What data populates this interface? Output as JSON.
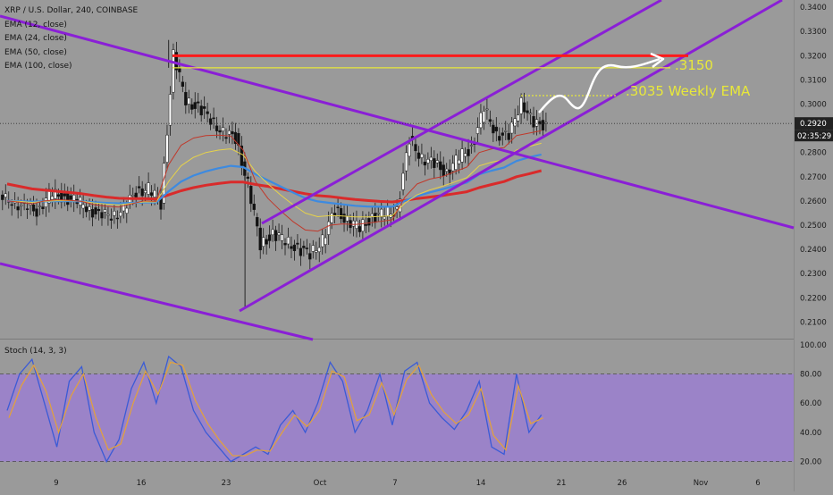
{
  "header": {
    "title": "XRP / U.S. Dollar, 240, COINBASE",
    "indicators": [
      "EMA (12, close)",
      "EMA (24, close)",
      "EMA (50, close)",
      "EMA (100, close)"
    ]
  },
  "stoch_panel": {
    "label": "Stoch (14, 3, 3)"
  },
  "price_box": {
    "price": "0.2920",
    "countdown": "02:35:29"
  },
  "annotations": {
    "target": ".3150",
    "weekly_ema": ".3035 Weekly EMA"
  },
  "colors": {
    "background": "#9a9a9a",
    "channel": "#8a1fd6",
    "resistance": "#ff1a1a",
    "annotation_line": "#e8e83a",
    "annotation_text": "#e8e83a",
    "ema12": "#c0392b",
    "ema24": "#e6d24a",
    "ema50": "#3d8ae0",
    "ema100": "#d92b2b",
    "candle_up": "#ffffff",
    "candle_down": "#111111",
    "stoch_band": "#9b7fd0",
    "stoch_k": "#3b5bd6",
    "stoch_d": "#e0a040"
  },
  "chart_data": [
    {
      "type": "candlestick",
      "title": "XRP / U.S. Dollar, 240, COINBASE",
      "y_axis_ticks": [
        "0.3400",
        "0.3300",
        "0.3200",
        "0.3100",
        "0.3000",
        "0.2900",
        "0.2800",
        "0.2700",
        "0.2600",
        "0.2500",
        "0.2400",
        "0.2300",
        "0.2200",
        "0.2100"
      ],
      "ylim": [
        0.2035,
        0.343
      ],
      "x_axis_ticks": [
        "9",
        "16",
        "23",
        "Oct",
        "7",
        "14",
        "21",
        "26",
        "Nov",
        "6"
      ],
      "x": [
        "Sep 05",
        "Sep 06",
        "Sep 07",
        "Sep 08",
        "Sep 09",
        "Sep 10",
        "Sep 11",
        "Sep 12",
        "Sep 13",
        "Sep 14",
        "Sep 15",
        "Sep 16",
        "Sep 17",
        "Sep 18",
        "Sep 19",
        "Sep 20",
        "Sep 21",
        "Sep 22",
        "Sep 23",
        "Sep 24",
        "Sep 25",
        "Sep 26",
        "Sep 27",
        "Sep 28",
        "Sep 29",
        "Sep 30",
        "Oct 01",
        "Oct 02",
        "Oct 03",
        "Oct 04",
        "Oct 05",
        "Oct 06",
        "Oct 07",
        "Oct 08",
        "Oct 09",
        "Oct 10",
        "Oct 11",
        "Oct 12",
        "Oct 13",
        "Oct 14",
        "Oct 15",
        "Oct 16",
        "Oct 17",
        "Oct 18"
      ],
      "close": [
        0.2605,
        0.257,
        0.256,
        0.2625,
        0.262,
        0.26,
        0.258,
        0.2535,
        0.2545,
        0.256,
        0.264,
        0.265,
        0.259,
        0.32,
        0.302,
        0.298,
        0.294,
        0.288,
        0.286,
        0.267,
        0.242,
        0.246,
        0.244,
        0.24,
        0.238,
        0.244,
        0.256,
        0.252,
        0.249,
        0.253,
        0.255,
        0.256,
        0.285,
        0.278,
        0.275,
        0.272,
        0.278,
        0.282,
        0.298,
        0.288,
        0.286,
        0.302,
        0.291,
        0.292
      ],
      "current_price": 0.292,
      "horizontal_lines": [
        {
          "price": 0.32,
          "role": "resistance"
        },
        {
          "price": 0.315,
          "label": ".3150"
        },
        {
          "price": 0.3035,
          "label": ".3035 Weekly EMA"
        }
      ],
      "series": [
        {
          "name": "EMA (12, close)",
          "values": [
            0.26,
            0.2595,
            0.2588,
            0.26,
            0.2605,
            0.2603,
            0.2598,
            0.2585,
            0.2578,
            0.2575,
            0.2588,
            0.26,
            0.2598,
            0.275,
            0.283,
            0.286,
            0.287,
            0.2872,
            0.2868,
            0.281,
            0.268,
            0.261,
            0.256,
            0.2515,
            0.248,
            0.2475,
            0.25,
            0.2505,
            0.2503,
            0.2508,
            0.2515,
            0.2522,
            0.2615,
            0.267,
            0.269,
            0.27,
            0.272,
            0.274,
            0.28,
            0.2815,
            0.282,
            0.287,
            0.288,
            0.289
          ]
        },
        {
          "name": "EMA (24, close)",
          "values": [
            0.26,
            0.2598,
            0.2594,
            0.2598,
            0.2601,
            0.2601,
            0.2599,
            0.2592,
            0.2587,
            0.2584,
            0.259,
            0.2596,
            0.2596,
            0.268,
            0.2745,
            0.278,
            0.28,
            0.281,
            0.2815,
            0.279,
            0.272,
            0.267,
            0.2625,
            0.2585,
            0.255,
            0.2535,
            0.254,
            0.2538,
            0.2534,
            0.2534,
            0.2536,
            0.2539,
            0.259,
            0.2625,
            0.2645,
            0.266,
            0.2678,
            0.2696,
            0.2745,
            0.276,
            0.277,
            0.281,
            0.2825,
            0.2838
          ]
        },
        {
          "name": "EMA (50, close)",
          "values": [
            0.26,
            0.2599,
            0.2597,
            0.2598,
            0.2599,
            0.2599,
            0.2598,
            0.2595,
            0.2592,
            0.259,
            0.2592,
            0.2594,
            0.2594,
            0.264,
            0.268,
            0.2705,
            0.2722,
            0.2735,
            0.2745,
            0.274,
            0.271,
            0.2685,
            0.266,
            0.2635,
            0.2612,
            0.2598,
            0.2592,
            0.2586,
            0.258,
            0.2577,
            0.2576,
            0.2576,
            0.26,
            0.262,
            0.2635,
            0.2648,
            0.2662,
            0.2676,
            0.271,
            0.2725,
            0.2738,
            0.2765,
            0.278,
            0.2792
          ]
        },
        {
          "name": "EMA (100, close)",
          "values": [
            0.267,
            0.266,
            0.265,
            0.2645,
            0.264,
            0.2635,
            0.263,
            0.2622,
            0.2616,
            0.2611,
            0.261,
            0.261,
            0.2608,
            0.2625,
            0.2642,
            0.2655,
            0.2665,
            0.2672,
            0.2678,
            0.2678,
            0.2668,
            0.266,
            0.265,
            0.264,
            0.263,
            0.2622,
            0.2618,
            0.2612,
            0.2606,
            0.2602,
            0.2598,
            0.2596,
            0.2602,
            0.261,
            0.2616,
            0.2622,
            0.263,
            0.2638,
            0.2655,
            0.2668,
            0.268,
            0.27,
            0.2712,
            0.2725
          ]
        }
      ],
      "grid": false
    },
    {
      "type": "line",
      "title": "Stoch (14, 3, 3)",
      "y_axis_ticks": [
        "100.00",
        "80.00",
        "60.00",
        "40.00",
        "20.00"
      ],
      "ylim": [
        13,
        103
      ],
      "band": [
        20,
        80
      ],
      "series": [
        {
          "name": "%K",
          "values": [
            55,
            80,
            90,
            60,
            30,
            75,
            85,
            40,
            20,
            35,
            70,
            88,
            60,
            92,
            85,
            55,
            40,
            30,
            20,
            25,
            30,
            25,
            45,
            55,
            40,
            60,
            88,
            75,
            40,
            55,
            80,
            45,
            82,
            88,
            60,
            50,
            42,
            55,
            75,
            30,
            25,
            80,
            40,
            52
          ]
        },
        {
          "name": "%D",
          "values": [
            50,
            72,
            86,
            68,
            40,
            65,
            80,
            50,
            28,
            32,
            60,
            82,
            66,
            88,
            86,
            62,
            46,
            34,
            24,
            24,
            28,
            27,
            40,
            52,
            44,
            55,
            82,
            78,
            48,
            52,
            74,
            52,
            76,
            86,
            66,
            54,
            46,
            52,
            70,
            38,
            28,
            72,
            46,
            50
          ]
        }
      ]
    }
  ]
}
